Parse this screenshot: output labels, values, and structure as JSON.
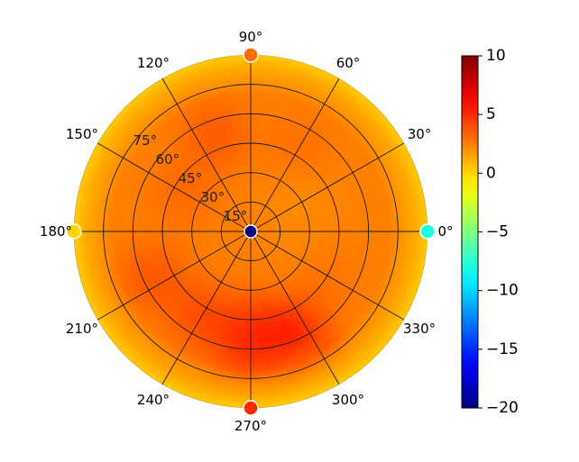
{
  "chart_data": {
    "type": "heatmap",
    "projection": "polar",
    "title": "",
    "angular_ticks": [
      {
        "deg": 0,
        "label": "0°"
      },
      {
        "deg": 30,
        "label": "30°"
      },
      {
        "deg": 60,
        "label": "60°"
      },
      {
        "deg": 90,
        "label": "90°"
      },
      {
        "deg": 120,
        "label": "120°"
      },
      {
        "deg": 150,
        "label": "150°"
      },
      {
        "deg": 180,
        "label": "180°"
      },
      {
        "deg": 210,
        "label": "210°"
      },
      {
        "deg": 240,
        "label": "240°"
      },
      {
        "deg": 270,
        "label": "270°"
      },
      {
        "deg": 300,
        "label": "300°"
      },
      {
        "deg": 330,
        "label": "330°"
      }
    ],
    "radial_ticks": [
      {
        "value": 15,
        "label": "15°"
      },
      {
        "value": 30,
        "label": "30°"
      },
      {
        "value": 45,
        "label": "45°"
      },
      {
        "value": 60,
        "label": "60°"
      },
      {
        "value": 75,
        "label": "75°"
      }
    ],
    "rlim": [
      0,
      90
    ],
    "grid": true,
    "colormap": "jet",
    "colorbar": {
      "vmin": -20,
      "vmax": 10,
      "ticks": [
        {
          "value": 10,
          "label": "10"
        },
        {
          "value": 5,
          "label": "5"
        },
        {
          "value": 0,
          "label": "0"
        },
        {
          "value": -5,
          "label": "−5"
        },
        {
          "value": -10,
          "label": "−10"
        },
        {
          "value": -15,
          "label": "−15"
        },
        {
          "value": -20,
          "label": "−20"
        }
      ],
      "placement": "right"
    },
    "field_description": "Approximately 2-4 across most of the disk, rising to about 5-6 in the lower (azimuth 270-300) region; about 0 near the rim; about -20 at the center.",
    "point_markers": [
      {
        "azimuth_deg": 0,
        "r_deg": 90,
        "value": -8
      },
      {
        "azimuth_deg": 90,
        "r_deg": 90,
        "value": 3
      },
      {
        "azimuth_deg": 180,
        "r_deg": 90,
        "value": 0
      },
      {
        "azimuth_deg": 270,
        "r_deg": 90,
        "value": 5
      },
      {
        "azimuth_deg": 0,
        "r_deg": 0,
        "value": -20
      }
    ]
  }
}
